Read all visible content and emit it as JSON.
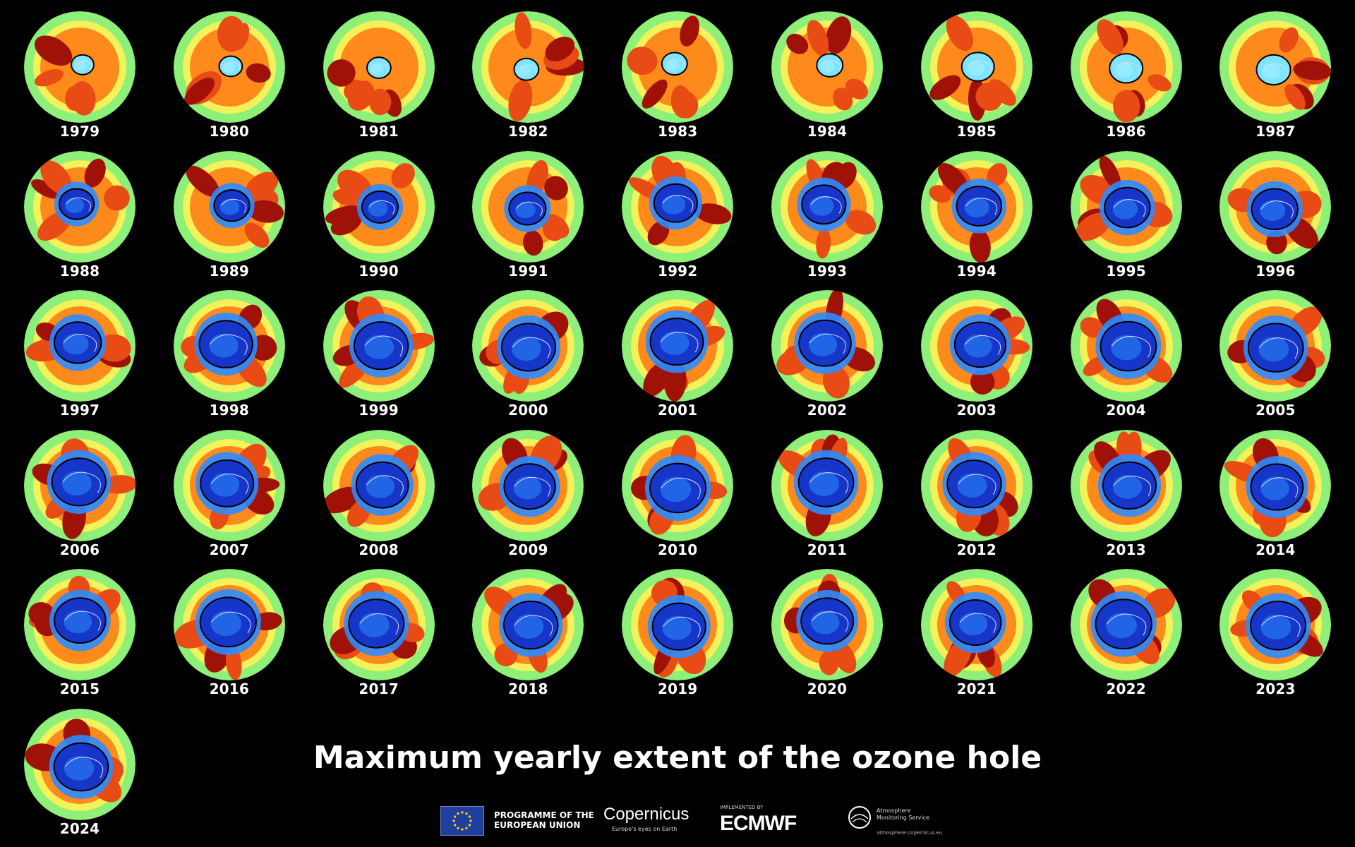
{
  "title": "Maximum yearly extent of the ozone hole",
  "years": [
    "1979",
    "1980",
    "1981",
    "1982",
    "1983",
    "1984",
    "1985",
    "1986",
    "1987",
    "1988",
    "1989",
    "1990",
    "1991",
    "1992",
    "1993",
    "1994",
    "1995",
    "1996",
    "1997",
    "1998",
    "1999",
    "2000",
    "2001",
    "2002",
    "2003",
    "2004",
    "2005",
    "2006",
    "2007",
    "2008",
    "2009",
    "2010",
    "2011",
    "2012",
    "2013",
    "2014",
    "2015",
    "2016",
    "2017",
    "2018",
    "2019",
    "2020",
    "2021",
    "2022",
    "2023",
    "2024"
  ],
  "colors": {
    "background": "#000000",
    "ring_outer": "#8ef078",
    "ring_mid": "#f3f25a",
    "ozone_high": "#ff8a1c",
    "ozone_higher": "#e84b14",
    "ozone_max": "#a01208",
    "hole_light": "#7fe4ff",
    "hole_mid": "#2b8cff",
    "hole_deep": "#1536c8"
  },
  "footer": {
    "eu_line1": "PROGRAMME OF THE",
    "eu_line2": "EUROPEAN UNION",
    "copernicus": "Copernicus",
    "copernicus_tagline": "Europe's eyes on Earth",
    "ecmwf_small": "IMPLEMENTED BY",
    "ecmwf": "ECMWF",
    "cams_line1": "Atmosphere",
    "cams_line2": "Monitoring Service",
    "cams_url": "atmosphere.copernicus.eu"
  }
}
